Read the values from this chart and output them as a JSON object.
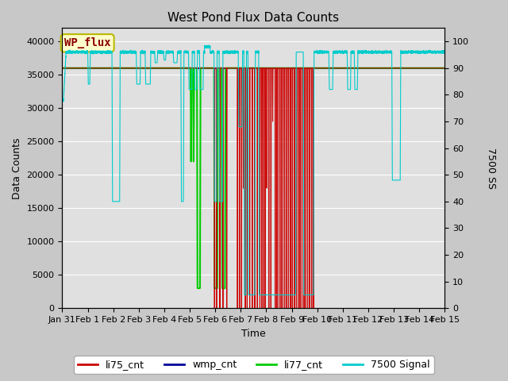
{
  "title": "West Pond Flux Data Counts",
  "xlabel": "Time",
  "ylabel": "Data Counts",
  "ylabel_right": "7500 SS",
  "ylim_left": [
    0,
    42000
  ],
  "ylim_right": [
    0,
    105
  ],
  "yticks_left": [
    0,
    5000,
    10000,
    15000,
    20000,
    25000,
    30000,
    35000,
    40000
  ],
  "yticks_right": [
    0,
    10,
    20,
    30,
    40,
    50,
    60,
    70,
    80,
    90,
    100
  ],
  "xtick_labels": [
    "Jan 31",
    "Feb 1",
    "Feb 2",
    "Feb 3",
    "Feb 4",
    "Feb 5",
    "Feb 6",
    "Feb 7",
    "Feb 8",
    "Feb 9",
    "Feb 10",
    "Feb 11",
    "Feb 12",
    "Feb 13",
    "Feb 14",
    "Feb 15"
  ],
  "fig_bg_color": "#c8c8c8",
  "plot_bg_color": "#e0e0e0",
  "annotation_text": "WP_flux",
  "annotation_bg": "#ffffcc",
  "annotation_border": "#b8b800",
  "li75_color": "#cc0000",
  "wmp_color": "#000099",
  "li77_color": "#00cc00",
  "signal7500_color": "#00cccc",
  "legend_labels": [
    "li75_cnt",
    "wmp_cnt",
    "li77_cnt",
    "7500 Signal"
  ],
  "li77_level": 36000,
  "figsize": [
    6.4,
    4.8
  ],
  "dpi": 100
}
